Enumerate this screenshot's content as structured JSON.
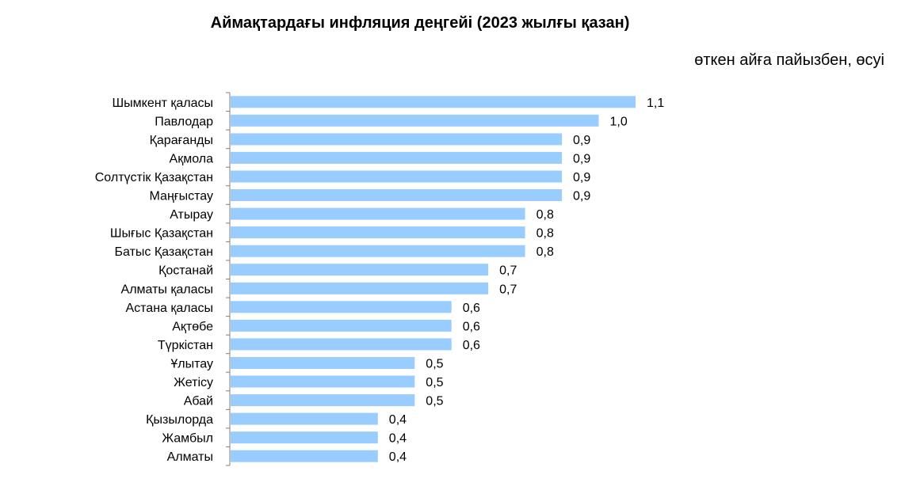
{
  "chart_data": {
    "type": "bar",
    "orientation": "horizontal",
    "title": "Аймақтардағы инфляция деңгейі (2023 жылғы қазан)",
    "subtitle": "өткен айға пайызбен, өсуі",
    "categories": [
      "Шымкент қаласы",
      "Павлодар",
      "Қарағанды",
      "Ақмола",
      "Солтүстік Қазақстан",
      "Маңғыстау",
      "Атырау",
      "Шығыс Қазақстан",
      "Батыс Қазақстан",
      "Қостанай",
      "Алматы қаласы",
      "Астана қаласы",
      "Ақтөбе",
      "Түркістан",
      "Ұлытау",
      "Жетісу",
      "Абай",
      "Қызылорда",
      "Жамбыл",
      "Алматы"
    ],
    "values": [
      1.1,
      1.0,
      0.9,
      0.9,
      0.9,
      0.9,
      0.8,
      0.8,
      0.8,
      0.7,
      0.7,
      0.6,
      0.6,
      0.6,
      0.5,
      0.5,
      0.5,
      0.4,
      0.4,
      0.4
    ],
    "value_labels": [
      "1,1",
      "1,0",
      "0,9",
      "0,9",
      "0,9",
      "0,9",
      "0,8",
      "0,8",
      "0,8",
      "0,7",
      "0,7",
      "0,6",
      "0,6",
      "0,6",
      "0,5",
      "0,5",
      "0,5",
      "0,4",
      "0,4",
      "0,4"
    ],
    "xlim": [
      0,
      1.1
    ],
    "bar_color": "#99CCFF",
    "axis_color": "#808080",
    "grid": false,
    "legend": "none"
  }
}
